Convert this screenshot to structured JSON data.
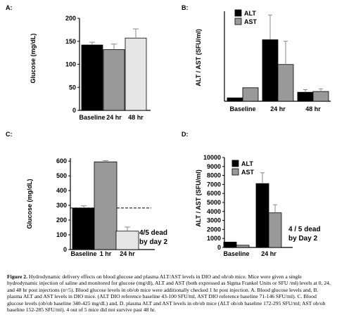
{
  "chart_data": [
    {
      "panel": "A:",
      "type": "bar",
      "categories": [
        "Baseline",
        "24 hr",
        "48 hr"
      ],
      "values": [
        142,
        132,
        157
      ],
      "errors": [
        6,
        12,
        20
      ],
      "colors": [
        "#000000",
        "#999999",
        "#e6e6e6"
      ],
      "ylabel": "Glucose (mg/dL)",
      "ylim": [
        0,
        200
      ],
      "yticks": [
        0,
        50,
        100,
        150,
        200
      ],
      "grid": false
    },
    {
      "panel": "B:",
      "type": "bar",
      "categories": [
        "Baseline",
        "24 hr",
        "48 hr"
      ],
      "series": [
        {
          "name": "ALT",
          "values": [
            45,
            820,
            120
          ],
          "errors": [
            0,
            330,
            35
          ],
          "color": "#000000"
        },
        {
          "name": "AST",
          "values": [
            180,
            490,
            130
          ],
          "errors": [
            0,
            310,
            35
          ],
          "color": "#999999"
        }
      ],
      "ylabel": "ALT / AST (SFU/ml)",
      "ylim": [
        0,
        1200
      ],
      "legend": "top-left",
      "grid": false
    },
    {
      "panel": "C:",
      "type": "bar",
      "categories": [
        "Baseline",
        "1 hr",
        "24 hr"
      ],
      "values": [
        282,
        595,
        125
      ],
      "errors": [
        15,
        8,
        28
      ],
      "colors": [
        "#000000",
        "#999999",
        "#e6e6e6"
      ],
      "ylabel": "Glucose (mg/dL)",
      "ylim": [
        0,
        620
      ],
      "yticks": [
        0,
        100,
        200,
        300,
        400,
        500,
        600
      ],
      "reference_line": 282,
      "annotation": [
        "4/5 dead",
        "by day 2"
      ],
      "grid": false
    },
    {
      "panel": "D:",
      "type": "bar",
      "categories": [
        "Baseline",
        "24 hr"
      ],
      "series": [
        {
          "name": "ALT",
          "values": [
            600,
            7100
          ],
          "errors": [
            0,
            1200
          ],
          "color": "#000000"
        },
        {
          "name": "AST",
          "values": [
            250,
            3850
          ],
          "errors": [
            0,
            900
          ],
          "color": "#999999"
        }
      ],
      "ylabel": "ALT / AST (SFU/ml)",
      "ylim": [
        0,
        10000
      ],
      "yticks": [
        0,
        1000,
        2000,
        3000,
        4000,
        5000,
        6000,
        7000,
        8000,
        9000,
        10000
      ],
      "legend": "top-left",
      "annotation": [
        "4 / 5 dead",
        "by Day 2"
      ],
      "grid": false
    }
  ],
  "caption": {
    "label": "Figure 2.",
    "text": " Hydrodynamic delivery effects on blood glucose and plasma ALT/AST levels in DIO and ob/ob mice. Mice were given a single hydrodynamic injection of saline and monitored for glucose (mg/dl), ALT and AST (both expressed as Sigma Frankel Units or SFU /ml) levels at 0, 24, and 48 hr post injections (n=5). Blood glucose levels in ob/ob mice were additionally checked 1 hr post injection. A. Blood glucose levels and, B. plasma ALT and AST levels in DIO mice. (ALT DIO reference baseline 43-100 SFU/ml, AST DIO reference baseline 71-146 SFU/ml). C. Blood glucose levels (ob/ob baseline 340-425 mg/dL) and, D. plasma ALT and AST levels in ob/ob mice (ALT ob/ob baseline 172-295 SFU/ml; AST ob/ob baseline 152-285 SFU/ml). 4 out of 5 mice did not survive past 48 hr."
  }
}
